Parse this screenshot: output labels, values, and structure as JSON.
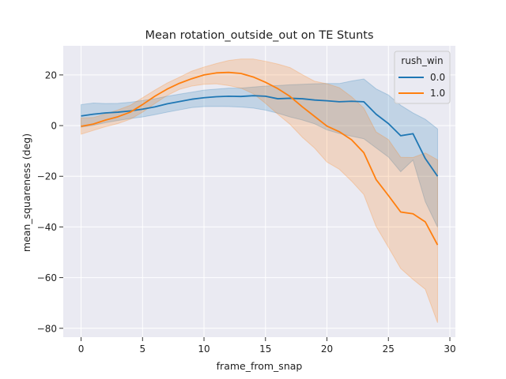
{
  "chart_data": {
    "type": "line",
    "title": "Mean rotation_outside_out on TE Stunts",
    "xlabel": "frame_from_snap",
    "ylabel": "mean_squareness (deg)",
    "xlim": [
      -1.45,
      30.45
    ],
    "ylim": [
      -83.5,
      31.5
    ],
    "xticks": [
      0,
      5,
      10,
      15,
      20,
      25,
      30
    ],
    "yticks": [
      -80,
      -60,
      -40,
      -20,
      0,
      20
    ],
    "xtick_labels": [
      "0",
      "5",
      "10",
      "15",
      "20",
      "25",
      "30"
    ],
    "ytick_labels": [
      "−80",
      "−60",
      "−40",
      "−20",
      "0",
      "20"
    ],
    "grid": true,
    "legend_position": "top-right",
    "legend_title": "rush_win",
    "x": [
      0,
      1,
      2,
      3,
      4,
      5,
      6,
      7,
      8,
      9,
      10,
      11,
      12,
      13,
      14,
      15,
      16,
      17,
      18,
      19,
      20,
      21,
      22,
      23,
      24,
      25,
      26,
      27,
      28,
      29
    ],
    "series": [
      {
        "name": "0.0",
        "color": "#1f77b4",
        "values": [
          3.8,
          4.5,
          5.0,
          5.3,
          5.8,
          6.5,
          7.4,
          8.6,
          9.5,
          10.4,
          11.0,
          11.4,
          11.6,
          11.5,
          11.8,
          11.6,
          10.6,
          10.8,
          10.6,
          10.1,
          9.8,
          9.4,
          9.6,
          9.4,
          4.5,
          0.8,
          -4.0,
          -3.2,
          -13.0,
          -20.0
        ],
        "ci_upper": [
          8.3,
          8.9,
          8.7,
          8.8,
          9.2,
          9.9,
          10.6,
          11.6,
          12.4,
          13.2,
          14.0,
          14.4,
          14.8,
          14.8,
          15.2,
          15.6,
          15.8,
          16.1,
          16.3,
          16.5,
          16.6,
          16.6,
          17.6,
          18.4,
          14.5,
          12.1,
          8.0,
          5.0,
          2.5,
          -1.3
        ],
        "ci_lower": [
          -0.6,
          0.1,
          1.2,
          2.0,
          2.8,
          3.4,
          4.3,
          5.3,
          6.2,
          7.1,
          7.5,
          7.6,
          7.5,
          7.3,
          6.9,
          6.1,
          4.9,
          3.4,
          2.2,
          0.7,
          -1.7,
          -3.1,
          -4.2,
          -5.2,
          -8.8,
          -12.4,
          -18.2,
          -13.6,
          -30.0,
          -40.1
        ]
      },
      {
        "name": "1.0",
        "color": "#ff7f0e",
        "values": [
          -0.3,
          0.6,
          2.2,
          3.5,
          5.3,
          8.3,
          11.6,
          14.4,
          16.7,
          18.5,
          20.0,
          20.8,
          21.0,
          20.6,
          19.2,
          17.1,
          14.6,
          11.5,
          7.4,
          3.6,
          -0.2,
          -2.4,
          -5.6,
          -10.7,
          -21.3,
          -27.6,
          -34.1,
          -34.8,
          -38.0,
          -47.1
        ],
        "ci_upper": [
          3.0,
          3.2,
          4.6,
          6.2,
          8.0,
          11.0,
          14.0,
          16.8,
          19.1,
          21.5,
          23.1,
          24.5,
          25.7,
          26.3,
          26.3,
          25.4,
          24.3,
          22.9,
          20.1,
          17.5,
          16.5,
          15.0,
          11.4,
          6.9,
          -2.5,
          -5.5,
          -12.5,
          -12.6,
          -10.8,
          -13.5
        ],
        "ci_lower": [
          -3.4,
          -1.9,
          -0.4,
          0.8,
          2.5,
          5.3,
          8.7,
          11.9,
          14.3,
          15.6,
          16.3,
          16.5,
          15.8,
          14.8,
          12.6,
          8.8,
          4.5,
          0.5,
          -4.6,
          -8.9,
          -14.4,
          -17.2,
          -21.9,
          -27.2,
          -39.8,
          -48.0,
          -56.4,
          -60.7,
          -64.6,
          -77.8
        ]
      }
    ]
  }
}
